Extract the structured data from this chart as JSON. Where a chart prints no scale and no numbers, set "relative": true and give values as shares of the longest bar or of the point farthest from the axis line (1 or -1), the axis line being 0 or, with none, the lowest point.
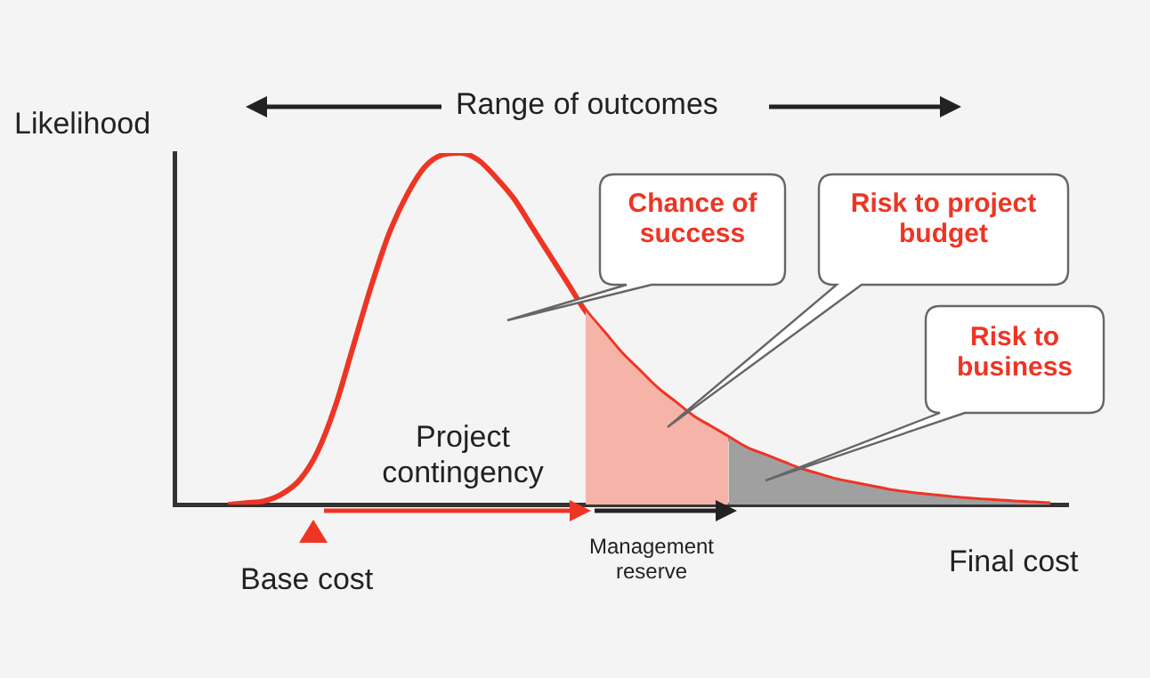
{
  "chart_data": {
    "type": "line",
    "relative": true,
    "xlabel": "Final cost",
    "ylabel": "Likelihood",
    "grid": false,
    "legend": false,
    "marker": "none",
    "categories": [
      null,
      null,
      null,
      null,
      null,
      null,
      null,
      null,
      null,
      null,
      null,
      null,
      null,
      null,
      null,
      null,
      null,
      null,
      null,
      null,
      null,
      null,
      null,
      null,
      null,
      null,
      null,
      null,
      null,
      null,
      null,
      null,
      null,
      null,
      null,
      null,
      null,
      null,
      null,
      null,
      null,
      null,
      null,
      null,
      null,
      null,
      null,
      null,
      null,
      null,
      null
    ],
    "annotations": [
      "Range of outcomes",
      "Chance of success",
      "Risk to project budget",
      "Risk to business",
      "Project contingency",
      "Management reserve",
      "Base cost"
    ],
    "series": [
      {
        "type": "area",
        "color": "#f6b3a8",
        "values": [
          null,
          null,
          null,
          null,
          null,
          null,
          null,
          null,
          null,
          null,
          null,
          null,
          null,
          null,
          null,
          null,
          null,
          null,
          null,
          null,
          null,
          null,
          null,
          0.55,
          0.49,
          0.43,
          0.38,
          0.33,
          0.29,
          0.25,
          0.22,
          0.19,
          null,
          null,
          null,
          null,
          null,
          null,
          null,
          null,
          null,
          null,
          null,
          null,
          null,
          null,
          null,
          null,
          null,
          null,
          null
        ]
      },
      {
        "type": "area",
        "color": "#a0a0a0",
        "values": [
          null,
          null,
          null,
          null,
          null,
          null,
          null,
          null,
          null,
          null,
          null,
          null,
          null,
          null,
          null,
          null,
          null,
          null,
          null,
          null,
          null,
          null,
          null,
          null,
          null,
          null,
          null,
          null,
          null,
          null,
          null,
          0.19,
          0.16,
          0.14,
          0.12,
          0.1,
          0.085,
          0.07,
          0.06,
          0.05,
          0.04,
          0.033,
          0.027,
          0.022,
          0.017,
          0.013,
          0.01,
          0.007,
          0.004,
          0.002,
          null
        ]
      },
      {
        "type": "line",
        "color": "#ee3524",
        "values": [
          null,
          null,
          null,
          0,
          0.005,
          0.01,
          0.03,
          0.07,
          0.15,
          0.28,
          0.45,
          0.62,
          0.77,
          0.88,
          0.96,
          0.995,
          1,
          0.98,
          0.93,
          0.87,
          0.79,
          0.71,
          0.63,
          0.55,
          0.49,
          0.43,
          0.38,
          0.33,
          0.29,
          0.25,
          0.22,
          0.19,
          0.16,
          0.14,
          0.12,
          0.1,
          0.085,
          0.07,
          0.06,
          0.05,
          0.04,
          0.033,
          0.027,
          0.022,
          0.017,
          0.013,
          0.01,
          0.007,
          0.004,
          0.002,
          null
        ]
      }
    ]
  }
}
